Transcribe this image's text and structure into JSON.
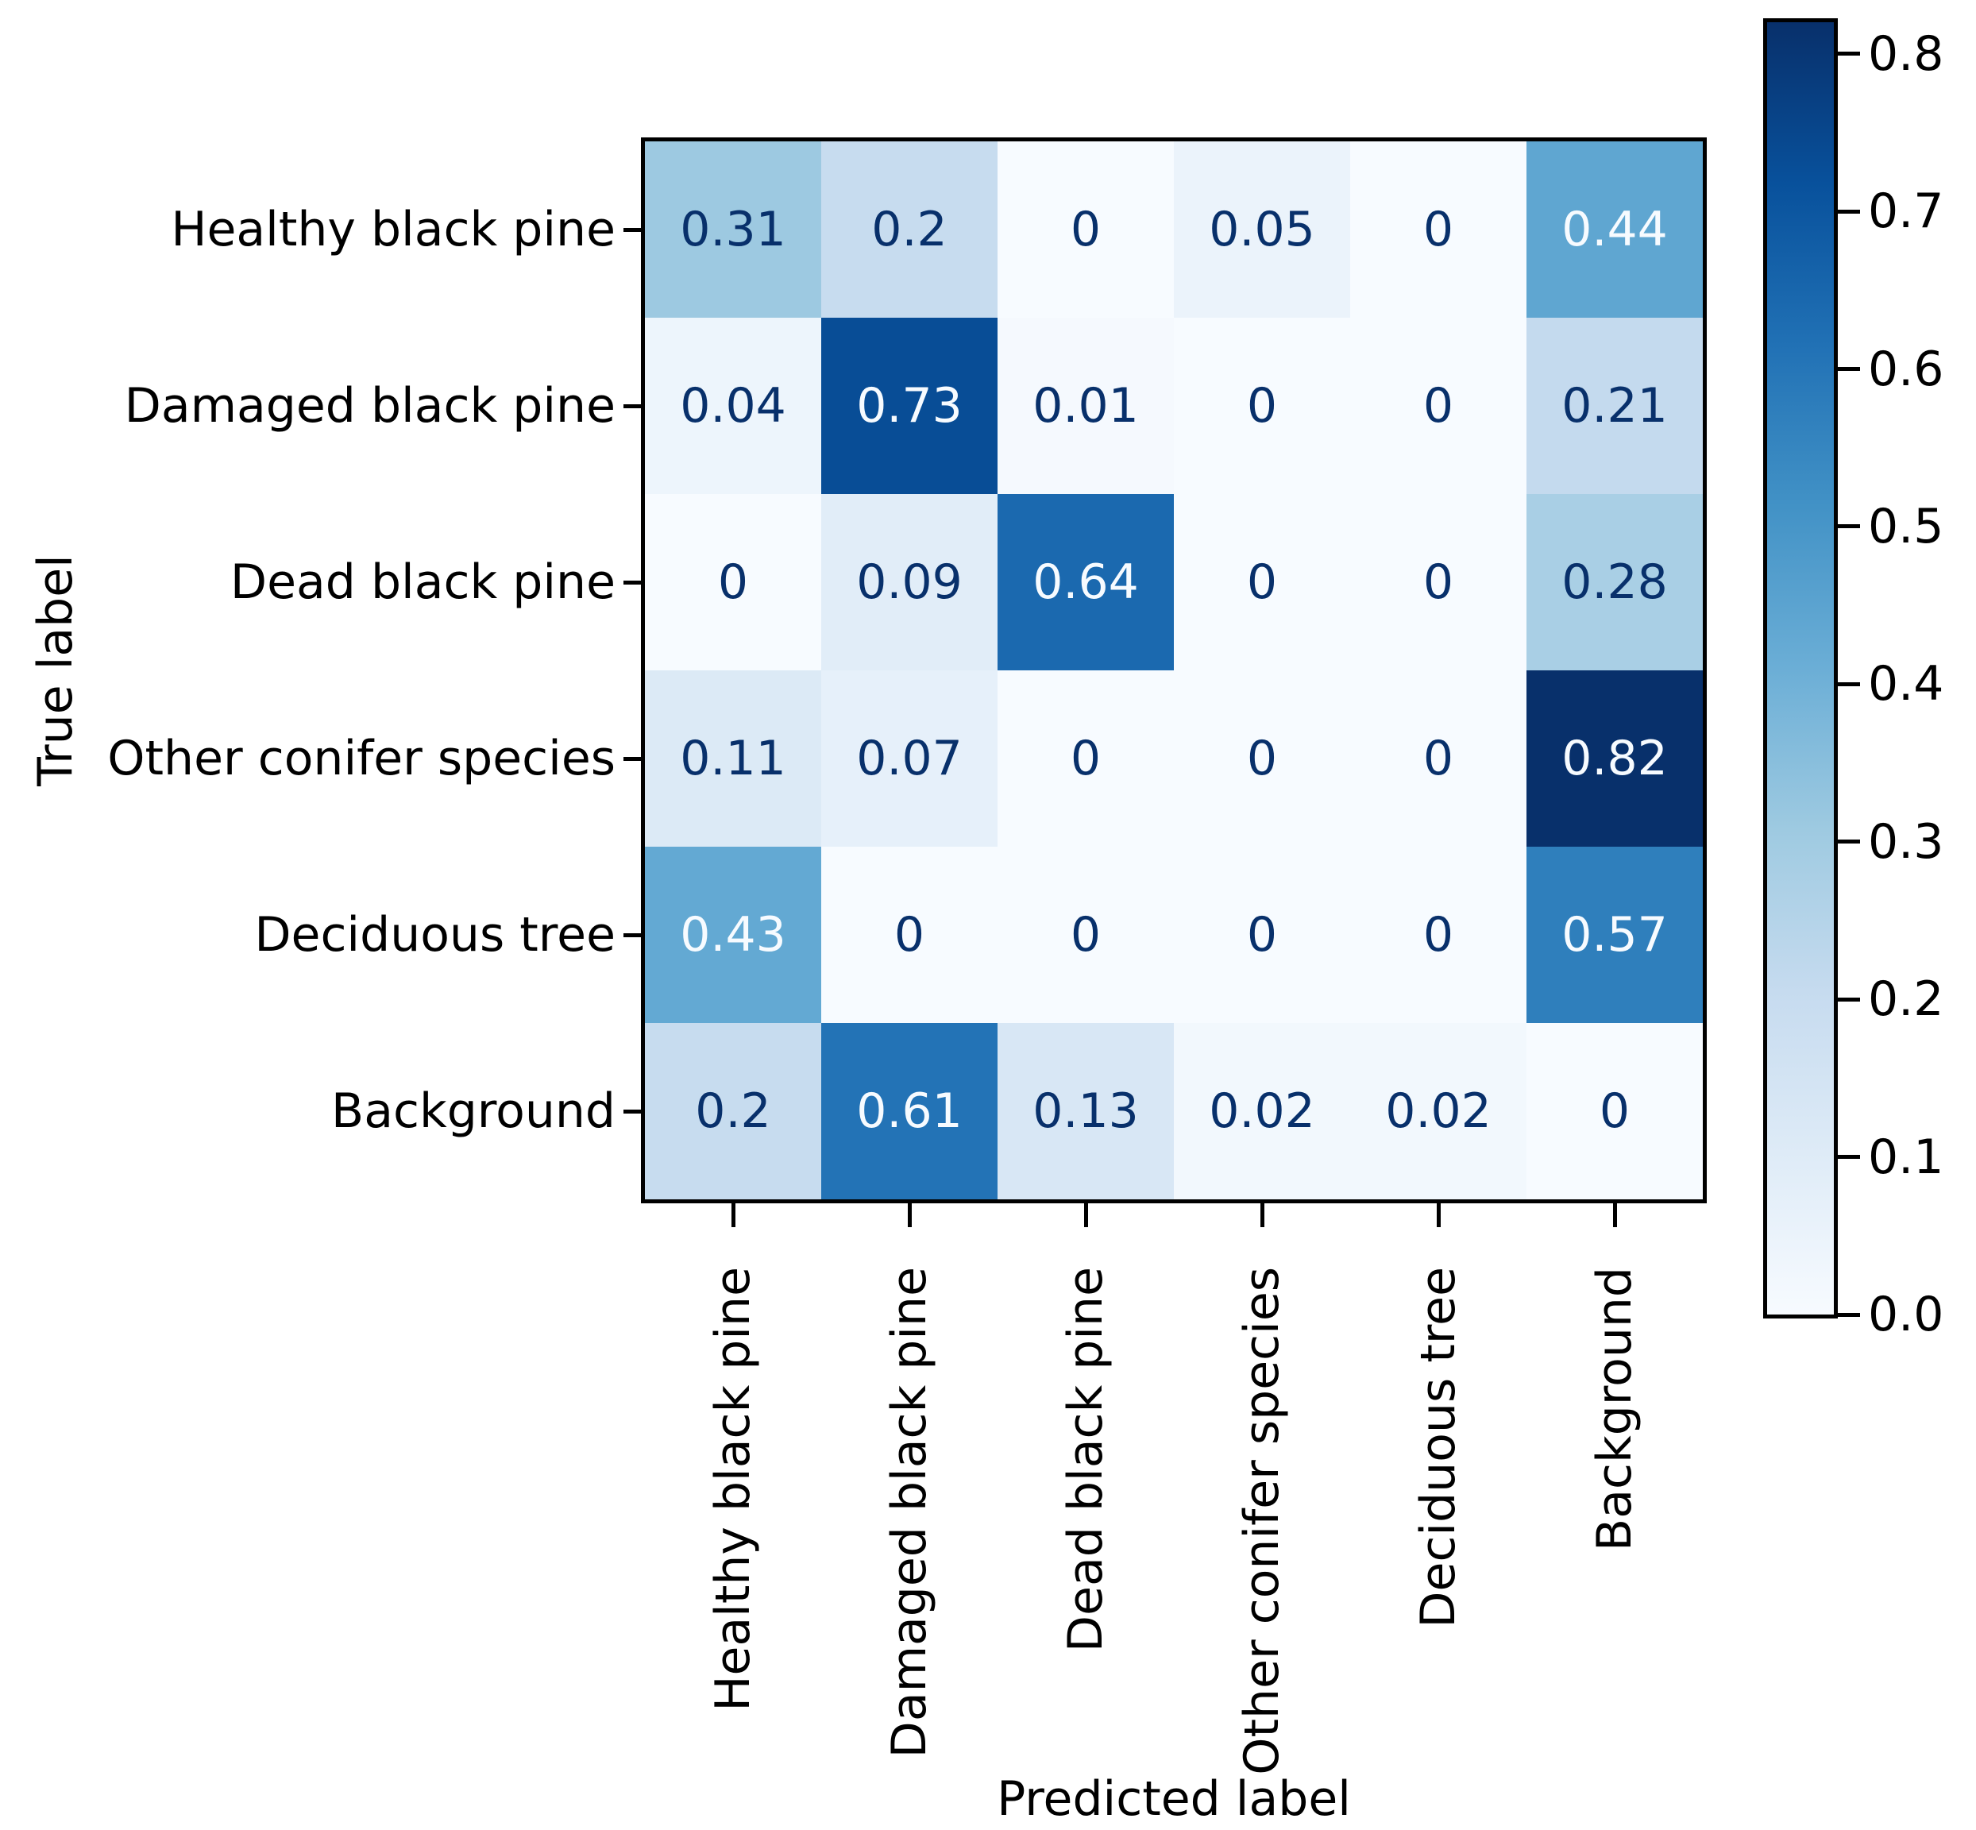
{
  "chart_data": {
    "type": "heatmap",
    "subtype": "confusion-matrix",
    "title": "",
    "xlabel": "Predicted label",
    "ylabel": "True label",
    "x_tick_labels": [
      "Healthy black pine",
      "Damaged black pine",
      "Dead black pine",
      "Other conifer species",
      "Deciduous tree",
      "Background"
    ],
    "y_tick_labels": [
      "Healthy black pine",
      "Damaged black pine",
      "Dead black pine",
      "Other conifer species",
      "Deciduous tree",
      "Background"
    ],
    "matrix": [
      [
        0.31,
        0.2,
        0,
        0.05,
        0,
        0.44
      ],
      [
        0.04,
        0.73,
        0.01,
        0,
        0,
        0.21
      ],
      [
        0,
        0.09,
        0.64,
        0,
        0,
        0.28
      ],
      [
        0.11,
        0.07,
        0,
        0,
        0,
        0.82
      ],
      [
        0.43,
        0,
        0,
        0,
        0,
        0.57
      ],
      [
        0.2,
        0.61,
        0.13,
        0.02,
        0.02,
        0
      ]
    ],
    "colorbar": {
      "tick_labels": [
        "0.8",
        "0.7",
        "0.6",
        "0.5",
        "0.4",
        "0.3",
        "0.2",
        "0.1",
        "0.0"
      ],
      "tick_values": [
        0.8,
        0.7,
        0.6,
        0.5,
        0.4,
        0.3,
        0.2,
        0.1,
        0.0
      ],
      "vmin": 0.0,
      "vmax": 0.82,
      "colormap": "Blues",
      "position": "right"
    },
    "grid": false,
    "legend": false,
    "colors": {
      "background": "#ffffff",
      "axis_text": "#000000",
      "cell_text_dark": "#08306b",
      "cell_text_light": "#f7fbff",
      "cmap_stops": [
        [
          0.0,
          "#f7fbff"
        ],
        [
          0.125,
          "#deebf7"
        ],
        [
          0.25,
          "#c6dbef"
        ],
        [
          0.375,
          "#9ecae1"
        ],
        [
          0.5,
          "#6baed6"
        ],
        [
          0.625,
          "#4292c6"
        ],
        [
          0.75,
          "#2171b5"
        ],
        [
          0.875,
          "#08519c"
        ],
        [
          1.0,
          "#08306b"
        ]
      ]
    }
  }
}
